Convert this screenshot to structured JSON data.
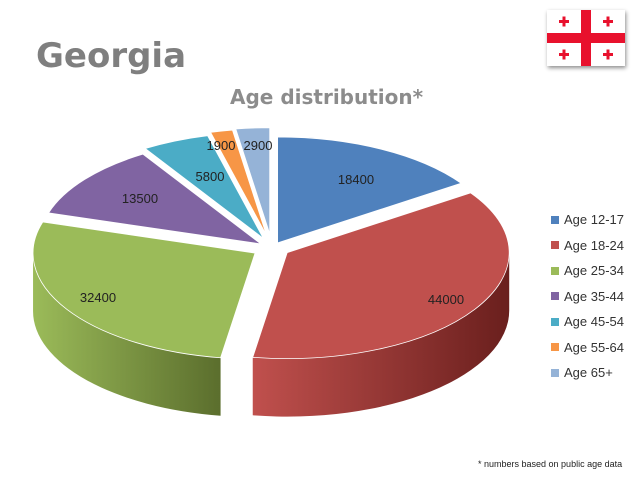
{
  "page": {
    "title": "Georgia",
    "footnote": "* numbers based on public age data"
  },
  "flag": {
    "name": "georgia-flag",
    "background": "#ffffff",
    "cross_color": "#e8112d"
  },
  "chart_data": {
    "type": "pie",
    "style": "3d-exploded",
    "title": "Age distribution*",
    "legend_position": "right",
    "categories": [
      "Age 12-17",
      "Age 18-24",
      "Age 25-34",
      "Age 35-44",
      "Age 45-54",
      "Age 55-64",
      "Age 65+"
    ],
    "values": [
      18400,
      44000,
      32400,
      13500,
      5800,
      1900,
      2900
    ],
    "colors": [
      "#4f81bd",
      "#c0504d",
      "#9bbb59",
      "#8064a2",
      "#4bacc6",
      "#f79646",
      "#95b3d7"
    ],
    "side_colors": [
      "#2c4d75",
      "#6a1f1d",
      "#5b6e2d",
      "#4b3a63",
      "#2a6b7c",
      "#a05a1a",
      "#5e7aa8"
    ],
    "data_labels": [
      "18400",
      "44000",
      "32400",
      "13500",
      "5800",
      "1900",
      "2900"
    ]
  }
}
